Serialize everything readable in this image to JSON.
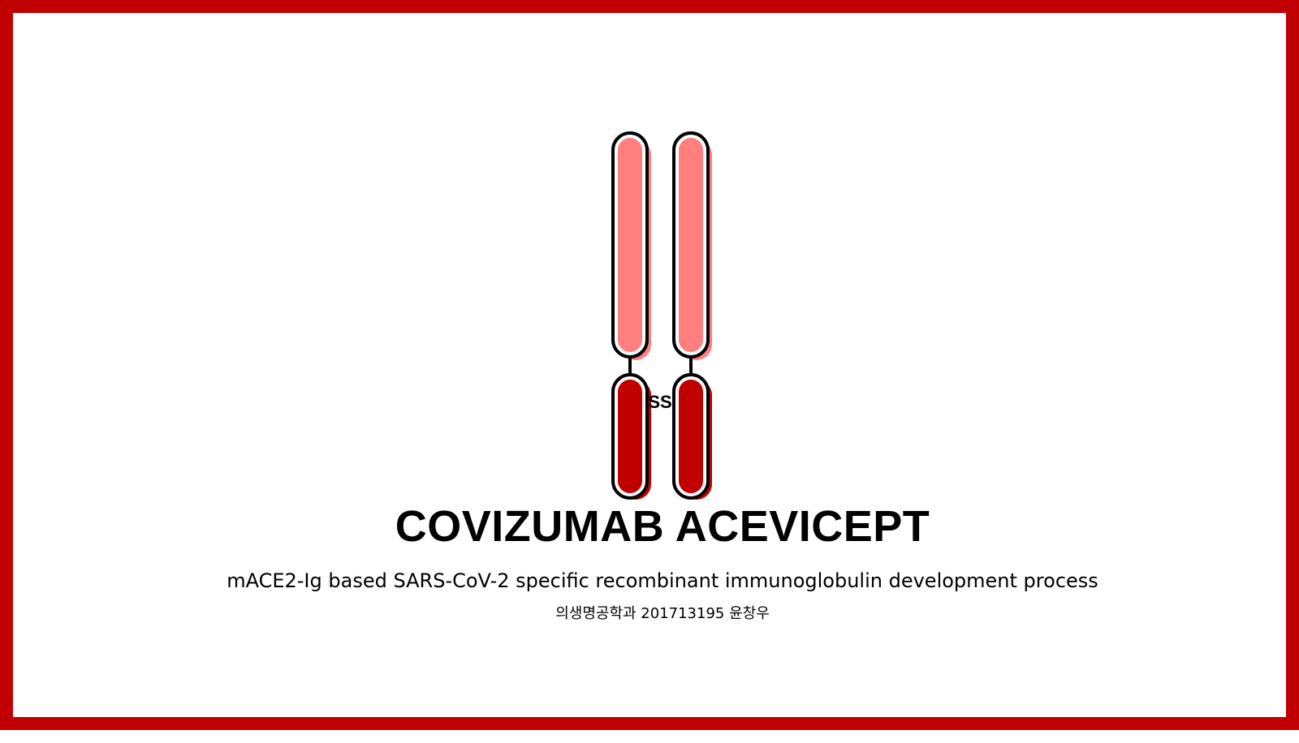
{
  "slide": {
    "title": "COVIZUMAB ACEVICEPT",
    "subtitle": "mACE2-Ig based SARS-CoV-2 specific recombinant immunoglobulin development process",
    "author": "의생명공학과 201713195 윤창우"
  },
  "diagram": {
    "disulfide_label": "SS"
  },
  "colors": {
    "border": "#c00000",
    "upper_domain_fill": "#ff7f7f",
    "lower_domain_fill": "#c00000",
    "outline": "#000000",
    "background": "#ffffff"
  }
}
